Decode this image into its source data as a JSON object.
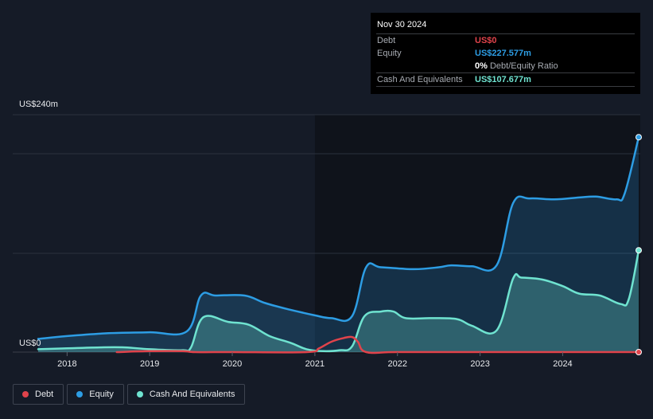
{
  "tooltip": {
    "date": "Nov 30 2024",
    "rows": [
      {
        "label": "Debt",
        "value": "US$0",
        "color": "#e0434b"
      },
      {
        "label": "Equity",
        "value": "US$227.577m",
        "color": "#2d9de4"
      },
      {
        "label": "",
        "value": "0%",
        "sub": "Debt/Equity Ratio",
        "color": "#ffffff"
      },
      {
        "label": "Cash And Equivalents",
        "value": "US$107.677m",
        "color": "#6fe3d0"
      }
    ]
  },
  "legend": [
    {
      "label": "Debt",
      "color": "#e0434b"
    },
    {
      "label": "Equity",
      "color": "#2d9de4"
    },
    {
      "label": "Cash And Equivalents",
      "color": "#6fe3d0"
    }
  ],
  "chart_data": {
    "type": "area",
    "y_top_label": "US$240m",
    "y_bottom_label": "US$0",
    "ylim": [
      0,
      240
    ],
    "xlim": [
      2017.65,
      2024.92
    ],
    "x_ticks": [
      "2018",
      "2019",
      "2020",
      "2021",
      "2022",
      "2023",
      "2024"
    ],
    "x_tick_values": [
      2018,
      2019,
      2020,
      2021,
      2022,
      2023,
      2024
    ],
    "grid": true,
    "legend_position": "bottom-left",
    "series": [
      {
        "name": "Equity",
        "color": "#2d9de4",
        "fill": true,
        "points": [
          [
            2017.65,
            14
          ],
          [
            2018.0,
            17
          ],
          [
            2018.5,
            20
          ],
          [
            2019.0,
            21
          ],
          [
            2019.45,
            22
          ],
          [
            2019.62,
            60
          ],
          [
            2019.8,
            60
          ],
          [
            2020.15,
            60
          ],
          [
            2020.4,
            52
          ],
          [
            2020.7,
            45
          ],
          [
            2021.0,
            39
          ],
          [
            2021.2,
            36
          ],
          [
            2021.45,
            38
          ],
          [
            2021.62,
            90
          ],
          [
            2021.8,
            90
          ],
          [
            2022.2,
            88
          ],
          [
            2022.5,
            90
          ],
          [
            2022.65,
            92
          ],
          [
            2022.9,
            91
          ],
          [
            2023.2,
            92
          ],
          [
            2023.4,
            158
          ],
          [
            2023.6,
            163
          ],
          [
            2023.9,
            162
          ],
          [
            2024.2,
            164
          ],
          [
            2024.4,
            165
          ],
          [
            2024.65,
            162
          ],
          [
            2024.75,
            168
          ],
          [
            2024.92,
            228
          ]
        ]
      },
      {
        "name": "Cash And Equivalents",
        "color": "#6fe3d0",
        "fill": true,
        "points": [
          [
            2017.65,
            3
          ],
          [
            2018.0,
            4
          ],
          [
            2018.4,
            5
          ],
          [
            2018.7,
            5
          ],
          [
            2019.0,
            3
          ],
          [
            2019.4,
            2
          ],
          [
            2019.5,
            5
          ],
          [
            2019.65,
            37
          ],
          [
            2019.95,
            32
          ],
          [
            2020.2,
            29
          ],
          [
            2020.45,
            17
          ],
          [
            2020.7,
            10
          ],
          [
            2020.9,
            3
          ],
          [
            2021.1,
            1
          ],
          [
            2021.3,
            2
          ],
          [
            2021.45,
            6
          ],
          [
            2021.6,
            38
          ],
          [
            2021.8,
            43
          ],
          [
            2021.95,
            43
          ],
          [
            2022.1,
            36
          ],
          [
            2022.4,
            36
          ],
          [
            2022.72,
            35
          ],
          [
            2022.9,
            28
          ],
          [
            2023.2,
            23
          ],
          [
            2023.4,
            78
          ],
          [
            2023.5,
            79
          ],
          [
            2023.75,
            77
          ],
          [
            2024.0,
            70
          ],
          [
            2024.2,
            62
          ],
          [
            2024.45,
            60
          ],
          [
            2024.7,
            51
          ],
          [
            2024.8,
            56
          ],
          [
            2024.92,
            108
          ]
        ]
      },
      {
        "name": "Debt",
        "color": "#e0434b",
        "fill": false,
        "points": [
          [
            2018.6,
            0
          ],
          [
            2019.0,
            1
          ],
          [
            2019.4,
            1
          ],
          [
            2019.55,
            0
          ],
          [
            2020.0,
            0
          ],
          [
            2020.9,
            0
          ],
          [
            2021.05,
            4
          ],
          [
            2021.2,
            11
          ],
          [
            2021.35,
            15
          ],
          [
            2021.45,
            16
          ],
          [
            2021.52,
            11
          ],
          [
            2021.62,
            0
          ],
          [
            2022.0,
            0
          ],
          [
            2023.0,
            0
          ],
          [
            2024.0,
            0
          ],
          [
            2024.92,
            0
          ]
        ]
      }
    ]
  }
}
